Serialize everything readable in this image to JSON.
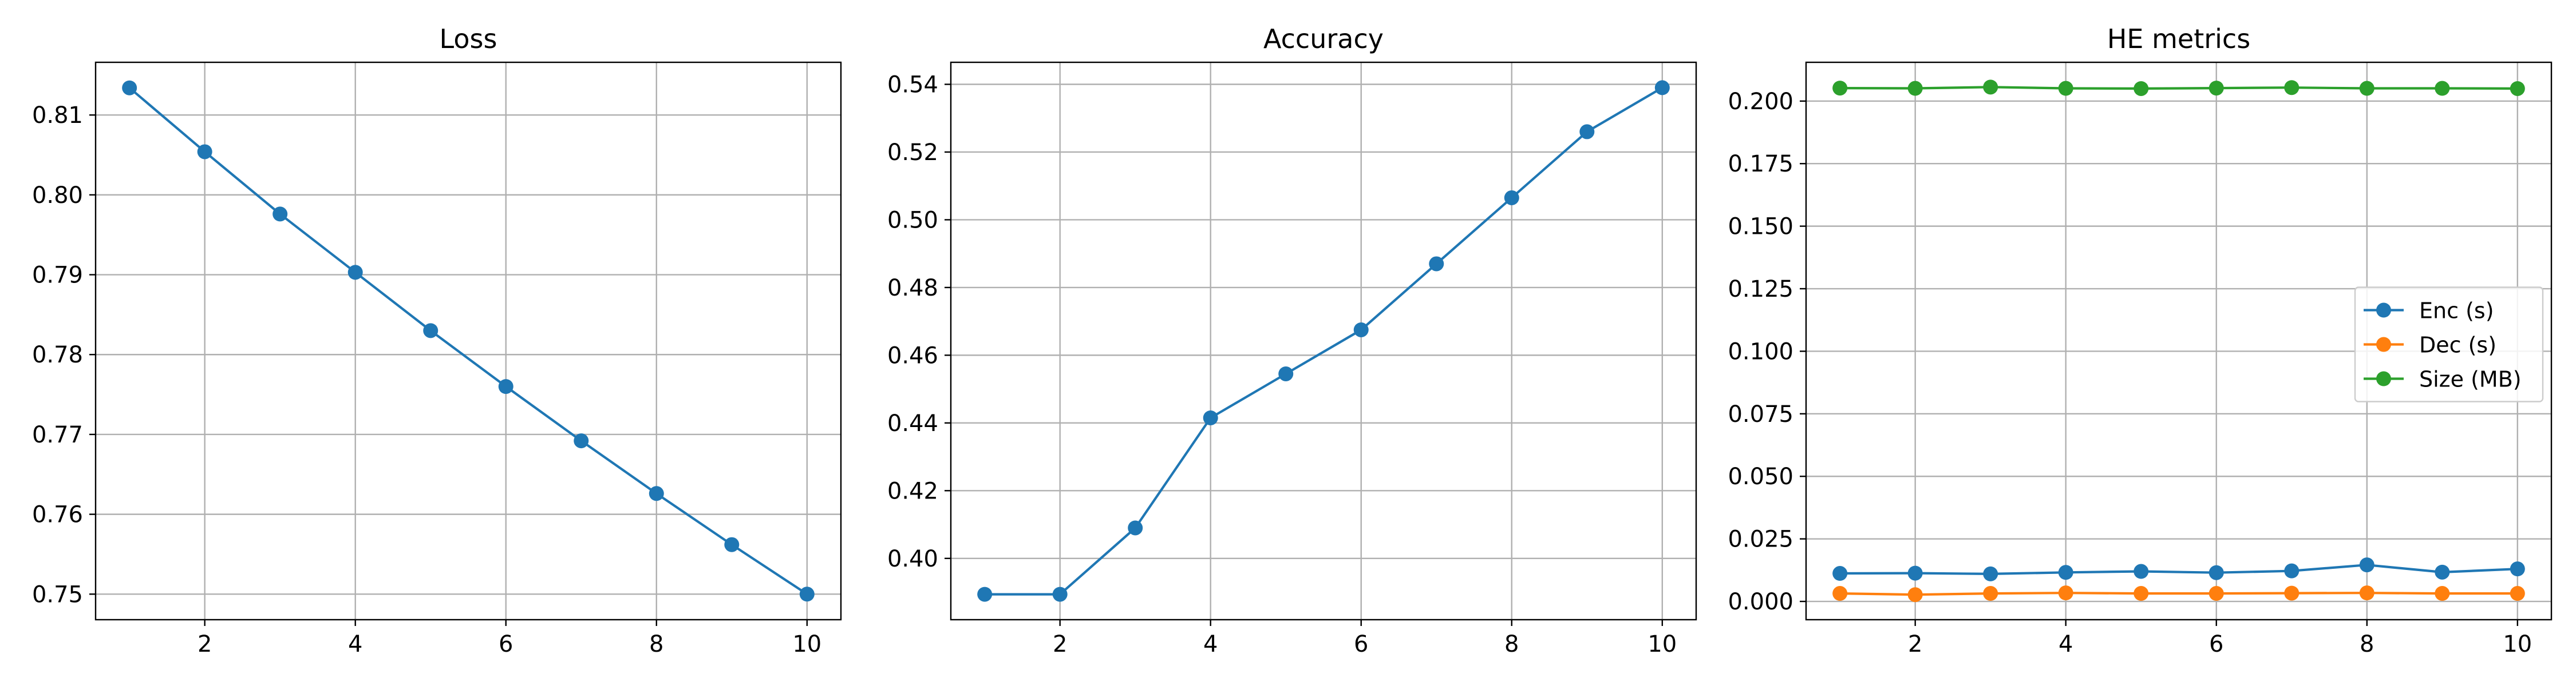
{
  "chart_data": [
    {
      "type": "line",
      "title": "Loss",
      "xlabel": "",
      "ylabel": "",
      "x": [
        1,
        2,
        3,
        4,
        5,
        6,
        7,
        8,
        9,
        10
      ],
      "xlim": [
        0.55,
        10.45
      ],
      "ylim": [
        0.7468,
        0.8166
      ],
      "xticks": [
        2,
        4,
        6,
        8,
        10
      ],
      "yticks": [
        0.75,
        0.76,
        0.77,
        0.78,
        0.79,
        0.8,
        0.81
      ],
      "ytick_decimals": 2,
      "grid": true,
      "legend": null,
      "series": [
        {
          "name": "",
          "color": "#1f77b4",
          "values": [
            0.8134,
            0.8054,
            0.7976,
            0.7903,
            0.783,
            0.776,
            0.7692,
            0.7626,
            0.7562,
            0.75
          ]
        }
      ]
    },
    {
      "type": "line",
      "title": "Accuracy",
      "xlabel": "",
      "ylabel": "",
      "x": [
        1,
        2,
        3,
        4,
        5,
        6,
        7,
        8,
        9,
        10
      ],
      "xlim": [
        0.55,
        10.45
      ],
      "ylim": [
        0.3819,
        0.5465
      ],
      "xticks": [
        2,
        4,
        6,
        8,
        10
      ],
      "yticks": [
        0.4,
        0.42,
        0.44,
        0.46,
        0.48,
        0.5,
        0.52,
        0.54
      ],
      "ytick_decimals": 2,
      "grid": true,
      "legend": null,
      "series": [
        {
          "name": "",
          "color": "#1f77b4",
          "values": [
            0.3894,
            0.3894,
            0.409,
            0.4415,
            0.4545,
            0.4675,
            0.487,
            0.5065,
            0.526,
            0.539
          ]
        }
      ]
    },
    {
      "type": "line",
      "title": "HE metrics",
      "xlabel": "",
      "ylabel": "",
      "x": [
        1,
        2,
        3,
        4,
        5,
        6,
        7,
        8,
        9,
        10
      ],
      "xlim": [
        0.55,
        10.45
      ],
      "ylim": [
        -0.0073,
        0.2155
      ],
      "xticks": [
        2,
        4,
        6,
        8,
        10
      ],
      "yticks": [
        0.0,
        0.025,
        0.05,
        0.075,
        0.1,
        0.125,
        0.15,
        0.175,
        0.2
      ],
      "ytick_decimals": 3,
      "grid": true,
      "legend": "center-right",
      "series": [
        {
          "name": "Enc (s)",
          "color": "#1f77b4",
          "values": [
            0.0112,
            0.0113,
            0.011,
            0.0116,
            0.012,
            0.0115,
            0.0122,
            0.0146,
            0.0117,
            0.013
          ]
        },
        {
          "name": "Dec (s)",
          "color": "#ff7f0e",
          "values": [
            0.0032,
            0.0027,
            0.0032,
            0.0034,
            0.0032,
            0.0032,
            0.0033,
            0.0034,
            0.0032,
            0.0032
          ]
        },
        {
          "name": "Size (MB)",
          "color": "#2ca02c",
          "values": [
            0.2052,
            0.2051,
            0.2056,
            0.2051,
            0.205,
            0.2052,
            0.2054,
            0.2051,
            0.2051,
            0.205
          ]
        }
      ]
    }
  ]
}
